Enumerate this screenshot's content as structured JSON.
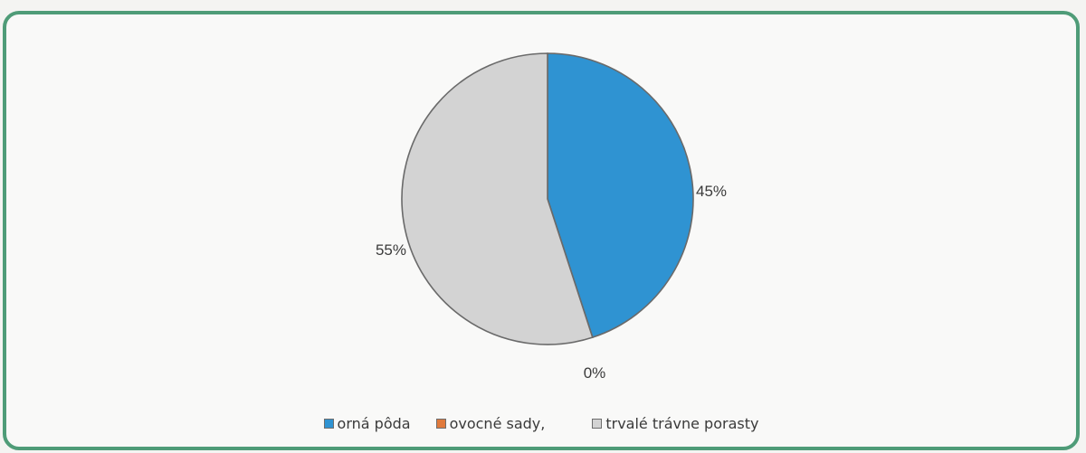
{
  "chart_data": {
    "type": "pie",
    "title": "",
    "categories": [
      "orná pôda",
      "ovocné sady,",
      "trvalé trávne porasty"
    ],
    "values": [
      45,
      0,
      55
    ],
    "data_labels": [
      "45%",
      "0%",
      "55%"
    ],
    "colors": [
      "#2f93d2",
      "#e07a3c",
      "#d3d3d3"
    ],
    "legend_position": "bottom",
    "start_angle_deg": 0,
    "direction": "clockwise"
  }
}
